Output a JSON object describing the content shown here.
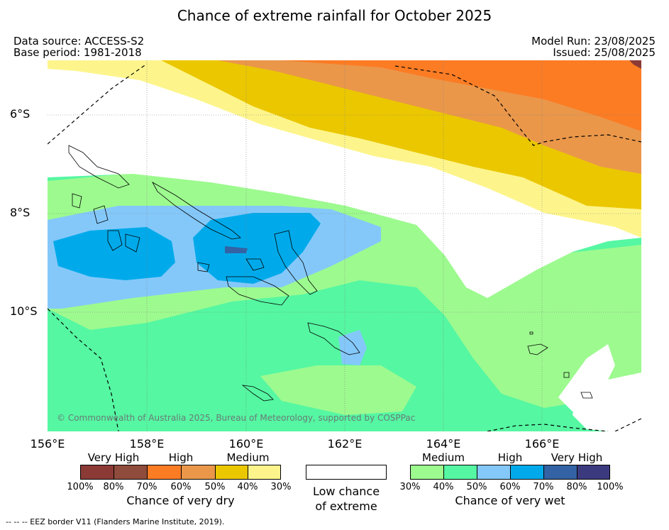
{
  "title": "Chance of extreme rainfall for October 2025",
  "data_source": "Data source: ACCESS-S2",
  "base_period": "Base period: 1981-2018",
  "model_run": "Model Run: 23/08/2025",
  "issued": "Issued: 25/08/2025",
  "copyright": "© Commonwealth of Australia 2025, Bureau of Meteorology, supported by COSPPac",
  "footnote": "--  --  -- EEZ border V11 (Flanders Marine Institute, 2019).",
  "map": {
    "latitude_labels": [
      "6°S",
      "8°S",
      "10°S"
    ],
    "longitude_labels": [
      "156°E",
      "158°E",
      "160°E",
      "162°E",
      "164°E",
      "166°E"
    ]
  },
  "legend": {
    "dry": {
      "levels": [
        "Very High",
        "High",
        "Medium"
      ],
      "percent_labels": [
        "100%",
        "80%",
        "70%",
        "60%",
        "50%",
        "40%",
        "30%"
      ],
      "colors": [
        "#8b3a35",
        "#8f4b3c",
        "#fc7c24",
        "#ea974a",
        "#ebc700",
        "#fdf58c"
      ],
      "caption": "Chance of very dry"
    },
    "low": {
      "caption_line1": "Low chance",
      "caption_line2": "of extreme",
      "color": "#ffffff"
    },
    "wet": {
      "levels": [
        "Medium",
        "High",
        "Very High"
      ],
      "percent_labels": [
        "30%",
        "40%",
        "50%",
        "60%",
        "70%",
        "80%",
        "100%"
      ],
      "colors": [
        "#9dfa8f",
        "#55f7a2",
        "#84c8fa",
        "#00aaea",
        "#3363a4",
        "#3c3a7f"
      ],
      "caption": "Chance of very wet"
    }
  }
}
